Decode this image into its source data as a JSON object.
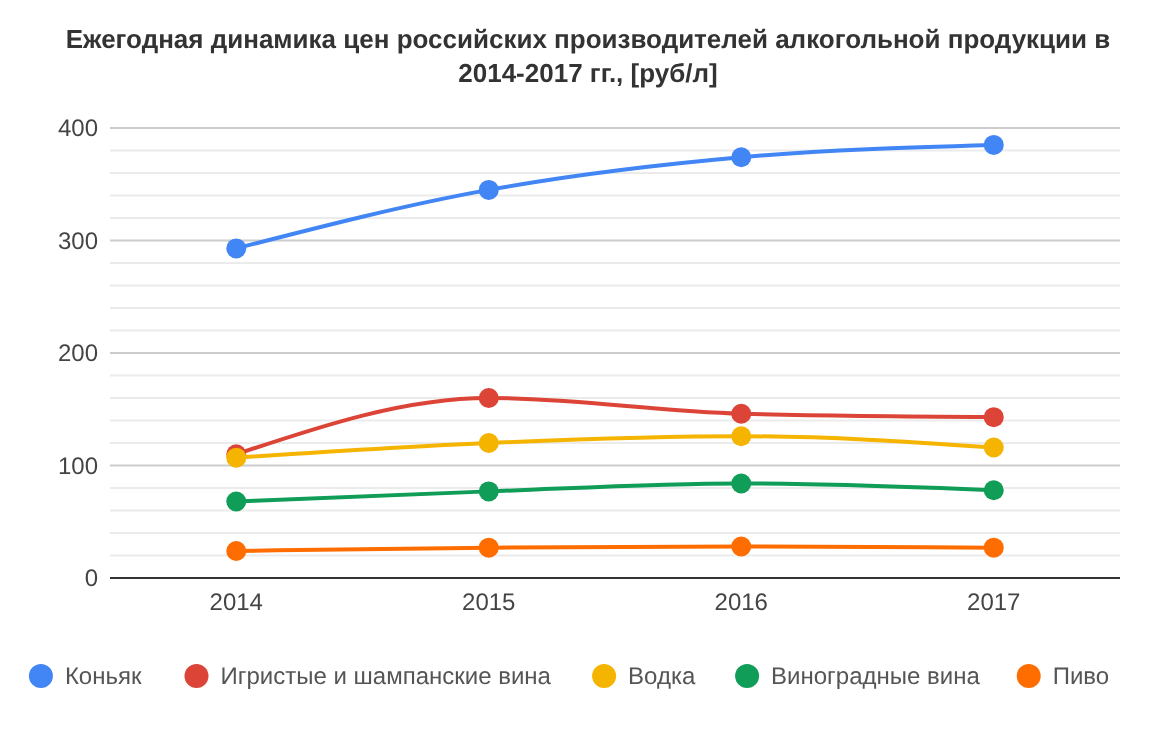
{
  "chart_data": {
    "type": "line",
    "title": "Ежегодная динамика цен российских производителей алкогольной продукции в 2014-2017 гг., [руб/л]",
    "categories": [
      "2014",
      "2015",
      "2016",
      "2017"
    ],
    "series": [
      {
        "name": "Коньяк",
        "color": "#4285f4",
        "values": [
          293,
          345,
          374,
          385
        ]
      },
      {
        "name": "Игристые и шампанские вина",
        "color": "#db4437",
        "values": [
          110,
          160,
          146,
          143
        ]
      },
      {
        "name": "Водка",
        "color": "#f4b400",
        "values": [
          107,
          120,
          126,
          116
        ]
      },
      {
        "name": "Виноградные вина",
        "color": "#0f9d58",
        "values": [
          68,
          77,
          84,
          78
        ]
      },
      {
        "name": "Пиво",
        "color": "#ff6d00",
        "values": [
          24,
          27,
          28,
          27
        ]
      }
    ],
    "ylim": [
      0,
      400
    ],
    "yticks": [
      0,
      {
        "value": 20,
        "label": null
      },
      {
        "value": 40,
        "label": null
      },
      {
        "value": 60,
        "label": null
      },
      {
        "value": 80,
        "label": null
      },
      100,
      {
        "value": 120,
        "label": null
      },
      {
        "value": 140,
        "label": null
      },
      {
        "value": 160,
        "label": null
      },
      {
        "value": 180,
        "label": null
      },
      200,
      {
        "value": 220,
        "label": null
      },
      {
        "value": 240,
        "label": null
      },
      {
        "value": 260,
        "label": null
      },
      {
        "value": 280,
        "label": null
      },
      300,
      {
        "value": 320,
        "label": null
      },
      {
        "value": 340,
        "label": null
      },
      {
        "value": 360,
        "label": null
      },
      {
        "value": 380,
        "label": null
      },
      400
    ],
    "grid": true,
    "legend": "bottom",
    "marker": "circle",
    "line_style": "solid"
  }
}
